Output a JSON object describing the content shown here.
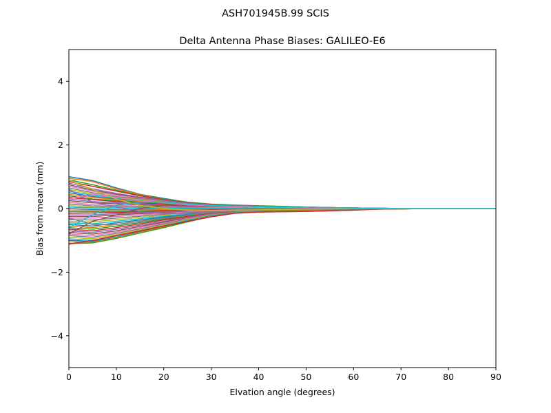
{
  "figure": {
    "suptitle": "ASH701945B.99   SCIS"
  },
  "chart_data": {
    "type": "line",
    "title": "Delta Antenna Phase Biases: GALILEO-E6",
    "xlabel": "Elvation angle (degrees)",
    "ylabel": "Bias from mean (mm)",
    "xlim": [
      0,
      90
    ],
    "ylim": [
      -5,
      5
    ],
    "xticks": [
      "0",
      "10",
      "20",
      "30",
      "40",
      "50",
      "60",
      "70",
      "80",
      "90"
    ],
    "yticks": [
      "4",
      "2",
      "0",
      "−2",
      "−4"
    ],
    "grid": false,
    "x": [
      0,
      5,
      10,
      15,
      20,
      25,
      30,
      35,
      40,
      45,
      50,
      55,
      60,
      65,
      70,
      75,
      80,
      85,
      90
    ],
    "palette": [
      "#1f77b4",
      "#ff7f0e",
      "#2ca02c",
      "#d62728",
      "#9467bd",
      "#8c564b",
      "#e377c2",
      "#7f7f7f",
      "#bcbd22",
      "#17becf"
    ],
    "series": [
      {
        "values": [
          1.0,
          0.88,
          0.65,
          0.45,
          0.32,
          0.2,
          0.12,
          0.1,
          0.08,
          0.06,
          0.05,
          0.03,
          0.02,
          0.01,
          0.0,
          0.0,
          0.0,
          0.0,
          0.0
        ]
      },
      {
        "values": [
          0.95,
          0.85,
          0.62,
          0.44,
          0.3,
          0.18,
          0.12,
          0.1,
          0.08,
          0.06,
          0.05,
          0.03,
          0.02,
          0.01,
          0.0,
          0.0,
          0.0,
          0.0,
          0.0
        ]
      },
      {
        "values": [
          0.9,
          0.75,
          0.58,
          0.42,
          0.3,
          0.2,
          0.14,
          0.11,
          0.09,
          0.07,
          0.05,
          0.03,
          0.02,
          0.01,
          0.0,
          0.0,
          0.0,
          0.0,
          0.0
        ]
      },
      {
        "values": [
          0.85,
          0.7,
          0.55,
          0.4,
          0.28,
          0.18,
          0.13,
          0.1,
          0.08,
          0.06,
          0.05,
          0.03,
          0.02,
          0.01,
          0.0,
          0.0,
          0.0,
          0.0,
          0.0
        ]
      },
      {
        "values": [
          0.8,
          0.62,
          0.48,
          0.36,
          0.26,
          0.17,
          0.12,
          0.1,
          0.08,
          0.06,
          0.04,
          0.03,
          0.02,
          0.01,
          0.0,
          0.0,
          0.0,
          0.0,
          0.0
        ]
      },
      {
        "values": [
          0.75,
          0.58,
          0.45,
          0.34,
          0.24,
          0.16,
          0.11,
          0.09,
          0.07,
          0.06,
          0.04,
          0.03,
          0.02,
          0.01,
          0.0,
          0.0,
          0.0,
          0.0,
          0.0
        ]
      },
      {
        "values": [
          0.7,
          0.55,
          0.42,
          0.32,
          0.23,
          0.15,
          0.1,
          0.08,
          0.07,
          0.05,
          0.04,
          0.03,
          0.02,
          0.01,
          0.0,
          0.0,
          0.0,
          0.0,
          0.0
        ]
      },
      {
        "values": [
          0.65,
          0.5,
          0.38,
          0.3,
          0.22,
          0.15,
          0.1,
          0.08,
          0.07,
          0.05,
          0.04,
          0.03,
          0.02,
          0.01,
          0.0,
          0.0,
          0.0,
          0.0,
          0.0
        ]
      },
      {
        "values": [
          0.6,
          0.46,
          0.35,
          0.28,
          0.2,
          0.14,
          0.1,
          0.08,
          0.06,
          0.05,
          0.04,
          0.02,
          0.01,
          0.01,
          0.0,
          0.0,
          0.0,
          0.0,
          0.0
        ]
      },
      {
        "values": [
          0.55,
          0.42,
          0.33,
          0.26,
          0.19,
          0.13,
          0.09,
          0.07,
          0.06,
          0.05,
          0.03,
          0.02,
          0.01,
          0.0,
          0.0,
          0.0,
          0.0,
          0.0,
          0.0
        ]
      },
      {
        "values": [
          0.5,
          0.38,
          0.3,
          0.24,
          0.18,
          0.12,
          0.09,
          0.07,
          0.06,
          0.04,
          0.03,
          0.02,
          0.01,
          0.0,
          0.0,
          0.0,
          0.0,
          0.0,
          0.0
        ]
      },
      {
        "values": [
          0.45,
          0.35,
          0.28,
          0.22,
          0.16,
          0.11,
          0.08,
          0.06,
          0.05,
          0.04,
          0.03,
          0.02,
          0.01,
          0.0,
          0.0,
          0.0,
          0.0,
          0.0,
          0.0
        ]
      },
      {
        "values": [
          0.4,
          0.3,
          0.25,
          0.2,
          0.15,
          0.1,
          0.07,
          0.06,
          0.05,
          0.04,
          0.03,
          0.02,
          0.01,
          0.0,
          0.0,
          0.0,
          0.0,
          0.0,
          0.0
        ]
      },
      {
        "values": [
          0.35,
          0.28,
          0.22,
          0.18,
          0.13,
          0.09,
          0.07,
          0.05,
          0.04,
          0.03,
          0.02,
          0.02,
          0.01,
          0.0,
          0.0,
          0.0,
          0.0,
          0.0,
          0.0
        ]
      },
      {
        "values": [
          0.3,
          0.22,
          0.18,
          0.15,
          0.11,
          0.08,
          0.06,
          0.05,
          0.04,
          0.03,
          0.02,
          0.01,
          0.01,
          0.0,
          0.0,
          0.0,
          0.0,
          0.0,
          0.0
        ]
      },
      {
        "values": [
          0.25,
          0.18,
          0.15,
          0.12,
          0.09,
          0.07,
          0.05,
          0.04,
          0.03,
          0.03,
          0.02,
          0.01,
          0.01,
          0.0,
          0.0,
          0.0,
          0.0,
          0.0,
          0.0
        ]
      },
      {
        "values": [
          0.2,
          0.12,
          0.1,
          0.08,
          0.06,
          0.04,
          0.03,
          0.03,
          0.02,
          0.02,
          0.01,
          0.01,
          0.0,
          0.0,
          0.0,
          0.0,
          0.0,
          0.0,
          0.0
        ]
      },
      {
        "values": [
          0.15,
          0.08,
          0.06,
          0.05,
          0.04,
          0.03,
          0.02,
          0.02,
          0.02,
          0.01,
          0.01,
          0.01,
          0.0,
          0.0,
          0.0,
          0.0,
          0.0,
          0.0,
          0.0
        ]
      },
      {
        "values": [
          0.1,
          0.04,
          0.03,
          0.02,
          0.02,
          0.01,
          0.01,
          0.01,
          0.01,
          0.01,
          0.0,
          0.0,
          0.0,
          0.0,
          0.0,
          0.0,
          0.0,
          0.0,
          0.0
        ]
      },
      {
        "values": [
          0.05,
          0.02,
          0.02,
          0.01,
          0.01,
          0.01,
          0.01,
          0.0,
          0.0,
          0.0,
          0.0,
          0.0,
          0.0,
          0.0,
          0.0,
          0.0,
          0.0,
          0.0,
          0.0
        ]
      },
      {
        "values": [
          0.0,
          -0.03,
          -0.03,
          -0.03,
          -0.02,
          -0.02,
          -0.01,
          -0.01,
          -0.01,
          0.0,
          0.0,
          0.0,
          0.0,
          0.0,
          0.0,
          0.0,
          0.0,
          0.0,
          0.0
        ]
      },
      {
        "values": [
          -0.05,
          -0.06,
          -0.05,
          -0.05,
          -0.04,
          -0.03,
          -0.02,
          -0.02,
          -0.01,
          -0.01,
          0.0,
          0.0,
          0.0,
          0.0,
          0.0,
          0.0,
          0.0,
          0.0,
          0.0
        ]
      },
      {
        "values": [
          -0.1,
          -0.1,
          -0.09,
          -0.08,
          -0.06,
          -0.05,
          -0.04,
          -0.03,
          -0.02,
          -0.01,
          -0.01,
          0.0,
          0.0,
          0.0,
          0.0,
          0.0,
          0.0,
          0.0,
          0.0
        ]
      },
      {
        "values": [
          -0.15,
          -0.14,
          -0.12,
          -0.1,
          -0.08,
          -0.06,
          -0.04,
          -0.03,
          -0.02,
          -0.02,
          -0.01,
          -0.01,
          0.0,
          0.0,
          0.0,
          0.0,
          0.0,
          0.0,
          0.0
        ]
      },
      {
        "values": [
          -0.2,
          -0.2,
          -0.16,
          -0.13,
          -0.1,
          -0.08,
          -0.06,
          -0.04,
          -0.03,
          -0.02,
          -0.01,
          -0.01,
          0.0,
          0.0,
          0.0,
          0.0,
          0.0,
          0.0,
          0.0
        ]
      },
      {
        "values": [
          -0.25,
          -0.25,
          -0.2,
          -0.16,
          -0.13,
          -0.1,
          -0.07,
          -0.05,
          -0.04,
          -0.03,
          -0.02,
          -0.01,
          0.0,
          0.0,
          0.0,
          0.0,
          0.0,
          0.0,
          0.0
        ]
      },
      {
        "values": [
          -0.3,
          -0.3,
          -0.25,
          -0.2,
          -0.15,
          -0.11,
          -0.08,
          -0.06,
          -0.04,
          -0.03,
          -0.02,
          -0.01,
          -0.01,
          0.0,
          0.0,
          0.0,
          0.0,
          0.0,
          0.0
        ]
      },
      {
        "values": [
          -0.35,
          -0.36,
          -0.3,
          -0.24,
          -0.18,
          -0.13,
          -0.09,
          -0.06,
          -0.05,
          -0.04,
          -0.03,
          -0.02,
          -0.01,
          0.0,
          0.0,
          0.0,
          0.0,
          0.0,
          0.0
        ]
      },
      {
        "values": [
          -0.4,
          -0.42,
          -0.35,
          -0.28,
          -0.21,
          -0.15,
          -0.1,
          -0.07,
          -0.05,
          -0.04,
          -0.03,
          -0.02,
          -0.01,
          0.0,
          0.0,
          0.0,
          0.0,
          0.0,
          0.0
        ]
      },
      {
        "values": [
          -0.45,
          -0.48,
          -0.4,
          -0.32,
          -0.24,
          -0.17,
          -0.11,
          -0.07,
          -0.05,
          -0.04,
          -0.03,
          -0.02,
          -0.01,
          0.0,
          0.0,
          0.0,
          0.0,
          0.0,
          0.0
        ]
      },
      {
        "values": [
          -0.5,
          -0.55,
          -0.45,
          -0.36,
          -0.27,
          -0.19,
          -0.12,
          -0.08,
          -0.06,
          -0.04,
          -0.03,
          -0.02,
          -0.01,
          0.0,
          0.0,
          0.0,
          0.0,
          0.0,
          0.0
        ]
      },
      {
        "values": [
          -0.55,
          -0.6,
          -0.5,
          -0.4,
          -0.3,
          -0.21,
          -0.14,
          -0.09,
          -0.06,
          -0.05,
          -0.04,
          -0.03,
          -0.02,
          -0.01,
          0.0,
          0.0,
          0.0,
          0.0,
          0.0
        ]
      },
      {
        "values": [
          -0.6,
          -0.65,
          -0.55,
          -0.44,
          -0.33,
          -0.23,
          -0.15,
          -0.1,
          -0.07,
          -0.05,
          -0.04,
          -0.03,
          -0.02,
          -0.01,
          0.0,
          0.0,
          0.0,
          0.0,
          0.0
        ]
      },
      {
        "values": [
          -0.65,
          -0.7,
          -0.6,
          -0.48,
          -0.36,
          -0.25,
          -0.16,
          -0.1,
          -0.07,
          -0.05,
          -0.04,
          -0.03,
          -0.02,
          -0.01,
          0.0,
          0.0,
          0.0,
          0.0,
          0.0
        ]
      },
      {
        "values": [
          -0.7,
          -0.75,
          -0.65,
          -0.52,
          -0.4,
          -0.27,
          -0.17,
          -0.11,
          -0.07,
          -0.06,
          -0.05,
          -0.04,
          -0.02,
          -0.01,
          0.0,
          0.0,
          0.0,
          0.0,
          0.0
        ]
      },
      {
        "values": [
          -0.75,
          -0.8,
          -0.7,
          -0.56,
          -0.43,
          -0.29,
          -0.18,
          -0.11,
          -0.08,
          -0.06,
          -0.05,
          -0.04,
          -0.02,
          -0.01,
          0.0,
          0.0,
          0.0,
          0.0,
          0.0
        ]
      },
      {
        "values": [
          -0.8,
          -0.85,
          -0.74,
          -0.6,
          -0.46,
          -0.31,
          -0.19,
          -0.12,
          -0.08,
          -0.07,
          -0.06,
          -0.04,
          -0.03,
          -0.01,
          0.0,
          0.0,
          0.0,
          0.0,
          0.0
        ]
      },
      {
        "values": [
          -0.85,
          -0.9,
          -0.78,
          -0.64,
          -0.49,
          -0.33,
          -0.2,
          -0.12,
          -0.08,
          -0.07,
          -0.06,
          -0.05,
          -0.03,
          -0.01,
          0.0,
          0.0,
          0.0,
          0.0,
          0.0
        ]
      },
      {
        "values": [
          -0.9,
          -0.95,
          -0.82,
          -0.67,
          -0.52,
          -0.35,
          -0.21,
          -0.12,
          -0.09,
          -0.08,
          -0.07,
          -0.05,
          -0.03,
          -0.01,
          0.0,
          0.0,
          0.0,
          0.0,
          0.0
        ]
      },
      {
        "values": [
          -0.95,
          -1.0,
          -0.86,
          -0.7,
          -0.54,
          -0.37,
          -0.22,
          -0.13,
          -0.09,
          -0.08,
          -0.07,
          -0.06,
          -0.04,
          -0.02,
          0.0,
          0.0,
          0.0,
          0.0,
          0.0
        ]
      },
      {
        "values": [
          -1.0,
          -1.03,
          -0.9,
          -0.73,
          -0.56,
          -0.39,
          -0.23,
          -0.13,
          -0.1,
          -0.09,
          -0.08,
          -0.06,
          -0.04,
          -0.02,
          -0.01,
          0.0,
          0.0,
          0.0,
          0.0
        ]
      },
      {
        "values": [
          -1.05,
          -1.06,
          -0.92,
          -0.75,
          -0.58,
          -0.4,
          -0.24,
          -0.14,
          -0.1,
          -0.09,
          -0.08,
          -0.06,
          -0.04,
          -0.02,
          -0.01,
          0.0,
          0.0,
          0.0,
          0.0
        ]
      },
      {
        "values": [
          -1.1,
          -1.08,
          -0.94,
          -0.77,
          -0.6,
          -0.42,
          -0.25,
          -0.14,
          -0.11,
          -0.1,
          -0.09,
          -0.07,
          -0.05,
          -0.02,
          -0.01,
          0.0,
          0.0,
          0.0,
          0.0
        ]
      },
      {
        "values": [
          -1.12,
          -1.0,
          -0.85,
          -0.7,
          -0.55,
          -0.4,
          -0.26,
          -0.15,
          -0.11,
          -0.1,
          -0.09,
          -0.07,
          -0.05,
          -0.02,
          -0.01,
          0.0,
          0.0,
          0.0,
          0.0
        ]
      },
      {
        "values": [
          0.6,
          0.2,
          0.05,
          -0.1,
          -0.15,
          -0.15,
          -0.1,
          -0.06,
          -0.03,
          -0.02,
          -0.01,
          0.0,
          0.0,
          0.0,
          0.0,
          0.0,
          0.0,
          0.0,
          0.0
        ]
      },
      {
        "values": [
          -0.8,
          -0.4,
          -0.2,
          0.0,
          0.1,
          0.12,
          0.1,
          0.08,
          0.06,
          0.05,
          0.04,
          0.03,
          0.02,
          0.01,
          0.0,
          0.0,
          0.0,
          0.0,
          0.0
        ]
      },
      {
        "values": [
          0.3,
          0.45,
          0.35,
          0.25,
          0.18,
          0.12,
          0.08,
          0.06,
          0.05,
          0.04,
          0.03,
          0.02,
          0.01,
          0.0,
          0.0,
          0.0,
          0.0,
          0.0,
          0.0
        ]
      },
      {
        "values": [
          -0.3,
          -0.5,
          -0.5,
          -0.4,
          -0.3,
          -0.2,
          -0.12,
          -0.08,
          -0.06,
          -0.05,
          -0.04,
          -0.03,
          -0.02,
          -0.01,
          0.0,
          0.0,
          0.0,
          0.0,
          0.0
        ]
      },
      {
        "values": [
          0.9,
          0.6,
          0.3,
          0.1,
          0.0,
          -0.05,
          -0.06,
          -0.05,
          -0.04,
          -0.03,
          -0.02,
          -0.01,
          0.0,
          0.0,
          0.0,
          0.0,
          0.0,
          0.0,
          0.0
        ]
      },
      {
        "values": [
          -0.6,
          -0.2,
          0.1,
          0.2,
          0.2,
          0.15,
          0.1,
          0.08,
          0.06,
          0.05,
          0.04,
          0.03,
          0.02,
          0.01,
          0.0,
          0.0,
          0.0,
          0.0,
          0.0
        ]
      }
    ]
  }
}
